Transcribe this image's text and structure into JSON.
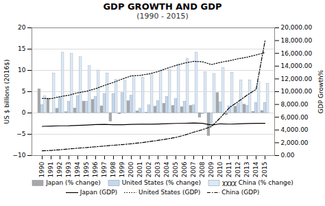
{
  "chart_data": {
    "type": "bar",
    "title": "GDP GROWTH AND GDP",
    "subtitle": "(1990 - 2015)",
    "categories": [
      "1990",
      "1991",
      "1992",
      "1993",
      "1994",
      "1995",
      "1996",
      "1997",
      "1998",
      "1999",
      "2000",
      "2001",
      "2002",
      "2003",
      "2004",
      "2005",
      "2006",
      "2007",
      "2008",
      "2009",
      "2010",
      "2011",
      "2012",
      "2013",
      "2014",
      "2015"
    ],
    "ylabel": "US $ billions (2016$)",
    "y2label": "GDP Growth%",
    "ylim": [
      -10,
      20
    ],
    "yticks": [
      -10,
      -5,
      0,
      5,
      10,
      15,
      20
    ],
    "y2lim": [
      0,
      20000
    ],
    "y2ticks": [
      {
        "value": 0,
        "label": "0.00"
      },
      {
        "value": 2000,
        "label": "2,000.00"
      },
      {
        "value": 4000,
        "label": "4,000.00"
      },
      {
        "value": 6000,
        "label": "6,000.00"
      },
      {
        "value": 8000,
        "label": "8,000.00"
      },
      {
        "value": 10000,
        "label": "10,000.00"
      },
      {
        "value": 12000,
        "label": "12,000.00"
      },
      {
        "value": 14000,
        "label": "14,000.00"
      },
      {
        "value": 16000,
        "label": "16,000.00"
      },
      {
        "value": 18000,
        "label": "18,000.00"
      },
      {
        "value": 20000,
        "label": "20,000.00"
      }
    ],
    "grid": true,
    "legend": "bottom",
    "series": [
      {
        "name": "Japan (% change)",
        "type": "bar",
        "color": "#a8a8a8",
        "values": [
          5.6,
          3.4,
          1.0,
          0.2,
          1.1,
          2.7,
          3.1,
          1.6,
          -2.0,
          -0.3,
          2.8,
          0.4,
          0.1,
          1.5,
          2.2,
          1.7,
          1.4,
          1.7,
          -1.1,
          -5.4,
          4.7,
          -0.5,
          1.5,
          2.0,
          0.3,
          0.5
        ]
      },
      {
        "name": "United States (% change)",
        "type": "bar",
        "color": "#c5d8ec",
        "values": [
          1.9,
          -0.1,
          3.6,
          2.7,
          4.0,
          2.7,
          3.8,
          4.5,
          4.5,
          4.7,
          4.1,
          1.0,
          1.8,
          2.8,
          3.8,
          3.3,
          2.7,
          1.8,
          -0.3,
          -2.8,
          2.5,
          1.6,
          2.2,
          1.7,
          2.4,
          2.4
        ]
      },
      {
        "name": "χχχχ China (% change)",
        "type": "bar",
        "color": "#dce9f5",
        "values": [
          3.9,
          9.3,
          14.2,
          13.9,
          13.1,
          11.0,
          10.0,
          9.3,
          7.8,
          7.6,
          8.4,
          8.3,
          9.1,
          10.0,
          10.1,
          11.4,
          12.7,
          14.2,
          9.6,
          9.2,
          10.6,
          9.5,
          7.7,
          7.7,
          7.3,
          6.9
        ]
      },
      {
        "name": "Japan (GDP)",
        "type": "line",
        "axis": "y2",
        "color": "#000000",
        "line_style": "solid",
        "values": [
          4572,
          4618,
          4650,
          4668,
          4718,
          4780,
          4844,
          4879,
          4830,
          4820,
          4888,
          4904,
          4910,
          4935,
          4985,
          5025,
          5056,
          5090,
          5038,
          4770,
          4970,
          4920,
          4970,
          5020,
          5030,
          5050
        ]
      },
      {
        "name": "United States (GDP)",
        "type": "line",
        "axis": "y2",
        "color": "#000000",
        "line_style": "dotted",
        "values": [
          8954,
          8901,
          9217,
          9449,
          9829,
          10073,
          10467,
          10989,
          11453,
          11987,
          12478,
          12551,
          12790,
          13153,
          13657,
          14100,
          14488,
          14744,
          14673,
          14240,
          14600,
          14840,
          15160,
          15400,
          15752,
          16120
        ]
      },
      {
        "name": "China (GDP)",
        "type": "line",
        "axis": "y2",
        "color": "#000000",
        "line_style": "dashdot",
        "values": [
          735,
          800,
          908,
          1025,
          1151,
          1257,
          1371,
          1492,
          1609,
          1717,
          1844,
          1990,
          2175,
          2369,
          2592,
          2843,
          3203,
          3660,
          4051,
          4552,
          5930,
          7492,
          8461,
          9469,
          10360,
          17947
        ]
      }
    ]
  }
}
